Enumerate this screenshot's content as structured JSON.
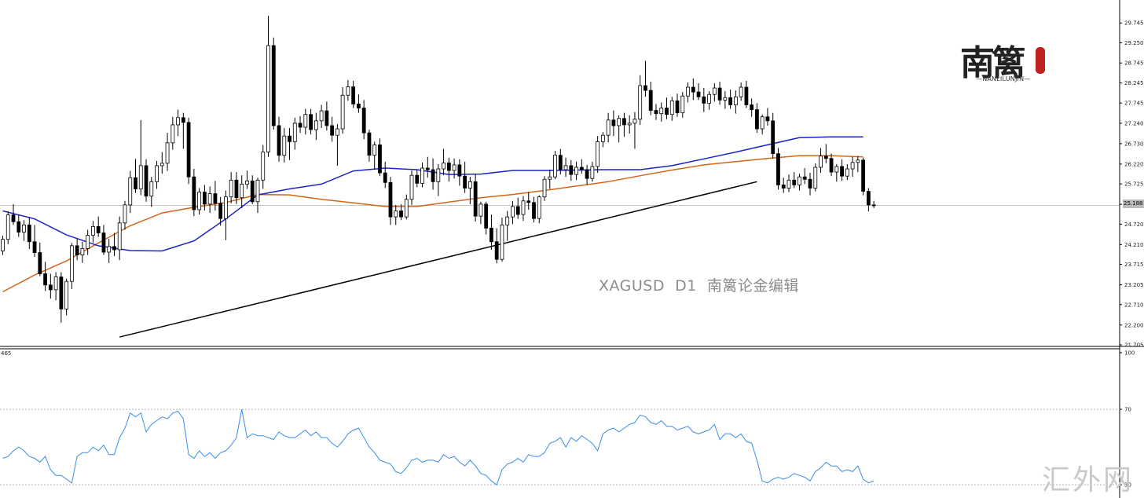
{
  "chart_data": [
    {
      "type": "candlestick",
      "title": "XAGUSD  D1  南篱论金编辑",
      "ylim": [
        21.705,
        30.24
      ],
      "y_ticks": [
        "29.745",
        "29.250",
        "28.745",
        "28.245",
        "27.745",
        "27.240",
        "26.730",
        "26.220",
        "25.725",
        "25.215",
        "24.720",
        "24.210",
        "23.715",
        "23.205",
        "22.710",
        "22.200",
        "21.705"
      ],
      "last_price": "25.188",
      "current_price_line": 25.188,
      "ohlc": [
        [
          24.05,
          24.43,
          23.95,
          24.34
        ],
        [
          24.34,
          25.04,
          24.22,
          24.95
        ],
        [
          24.95,
          25.22,
          24.7,
          24.78
        ],
        [
          24.78,
          24.95,
          24.4,
          24.52
        ],
        [
          24.52,
          24.82,
          24.3,
          24.7
        ],
        [
          24.7,
          24.9,
          24.1,
          24.28
        ],
        [
          24.28,
          24.7,
          23.9,
          24.01
        ],
        [
          24.01,
          24.26,
          23.42,
          23.48
        ],
        [
          23.48,
          23.78,
          23.05,
          23.2
        ],
        [
          23.2,
          23.48,
          22.86,
          23.08
        ],
        [
          23.08,
          23.52,
          22.82,
          23.4
        ],
        [
          23.4,
          23.52,
          22.26,
          22.6
        ],
        [
          22.6,
          23.36,
          22.44,
          23.29
        ],
        [
          23.29,
          24.25,
          23.1,
          24.18
        ],
        [
          24.18,
          24.35,
          23.82,
          23.95
        ],
        [
          23.95,
          24.28,
          23.75,
          24.11
        ],
        [
          24.11,
          24.58,
          23.95,
          24.44
        ],
        [
          24.44,
          24.8,
          24.26,
          24.66
        ],
        [
          24.66,
          24.91,
          24.4,
          24.5
        ],
        [
          24.5,
          24.7,
          23.95,
          24.02
        ],
        [
          24.02,
          24.35,
          23.75,
          24.16
        ],
        [
          24.16,
          24.5,
          23.92,
          24.08
        ],
        [
          24.08,
          24.91,
          23.82,
          24.75
        ],
        [
          24.75,
          25.3,
          24.58,
          25.2
        ],
        [
          25.2,
          26.05,
          25.0,
          25.88
        ],
        [
          25.88,
          26.35,
          25.5,
          25.6
        ],
        [
          25.6,
          27.32,
          25.44,
          26.18
        ],
        [
          26.18,
          26.34,
          25.28,
          25.42
        ],
        [
          25.42,
          25.9,
          25.15,
          25.78
        ],
        [
          25.78,
          26.3,
          25.6,
          26.18
        ],
        [
          26.18,
          26.52,
          25.98,
          26.24
        ],
        [
          26.24,
          27.0,
          26.05,
          26.75
        ],
        [
          26.75,
          27.4,
          26.58,
          27.2
        ],
        [
          27.2,
          27.58,
          26.92,
          27.38
        ],
        [
          27.38,
          27.5,
          26.6,
          27.26
        ],
        [
          27.26,
          27.38,
          25.72,
          25.9
        ],
        [
          25.9,
          26.1,
          24.92,
          25.08
        ],
        [
          25.08,
          25.62,
          24.96,
          25.52
        ],
        [
          25.52,
          25.7,
          25.06,
          25.22
        ],
        [
          25.22,
          25.66,
          25.0,
          25.48
        ],
        [
          25.48,
          25.8,
          25.06,
          25.24
        ],
        [
          25.24,
          25.4,
          24.68,
          24.86
        ],
        [
          24.86,
          25.56,
          24.32,
          25.4
        ],
        [
          25.4,
          26.02,
          25.24,
          25.82
        ],
        [
          25.82,
          26.02,
          25.22,
          25.38
        ],
        [
          25.38,
          25.94,
          25.12,
          25.72
        ],
        [
          25.72,
          26.06,
          25.6,
          25.8
        ],
        [
          25.8,
          25.94,
          25.22,
          25.28
        ],
        [
          25.28,
          25.88,
          25.0,
          25.82
        ],
        [
          25.82,
          26.7,
          25.6,
          26.52
        ],
        [
          26.52,
          29.92,
          26.4,
          29.18
        ],
        [
          29.18,
          29.38,
          27.08,
          27.18
        ],
        [
          27.18,
          27.4,
          26.28,
          26.44
        ],
        [
          26.44,
          27.12,
          26.26,
          26.92
        ],
        [
          26.92,
          27.12,
          26.32,
          26.78
        ],
        [
          26.78,
          27.38,
          26.58,
          27.24
        ],
        [
          27.24,
          27.42,
          27.0,
          27.14
        ],
        [
          27.14,
          27.6,
          26.96,
          27.46
        ],
        [
          27.46,
          27.6,
          26.96,
          27.08
        ],
        [
          27.08,
          27.5,
          26.82,
          27.3
        ],
        [
          27.3,
          27.7,
          27.12,
          27.55
        ],
        [
          27.55,
          27.78,
          27.06,
          27.18
        ],
        [
          27.18,
          27.4,
          26.78,
          26.94
        ],
        [
          26.94,
          27.22,
          26.18,
          27.1
        ],
        [
          27.1,
          28.14,
          26.98,
          27.94
        ],
        [
          27.94,
          28.32,
          27.8,
          28.15
        ],
        [
          28.15,
          28.3,
          27.62,
          27.72
        ],
        [
          27.72,
          27.96,
          27.5,
          27.62
        ],
        [
          27.62,
          27.82,
          26.84,
          27.0
        ],
        [
          27.0,
          27.08,
          26.28,
          26.44
        ],
        [
          26.44,
          26.78,
          26.08,
          26.7
        ],
        [
          26.7,
          26.86,
          25.92,
          26.0
        ],
        [
          26.0,
          26.28,
          25.62,
          25.76
        ],
        [
          25.76,
          25.9,
          24.7,
          24.9
        ],
        [
          24.9,
          25.2,
          24.7,
          25.05
        ],
        [
          25.05,
          25.22,
          24.82,
          24.9
        ],
        [
          24.9,
          25.46,
          24.84,
          25.34
        ],
        [
          25.34,
          26.06,
          25.2,
          25.94
        ],
        [
          25.94,
          26.08,
          25.64,
          25.74
        ],
        [
          25.74,
          26.26,
          25.64,
          26.12
        ],
        [
          26.12,
          26.4,
          25.88,
          26.08
        ],
        [
          26.08,
          26.36,
          25.58,
          25.78
        ],
        [
          25.78,
          26.22,
          25.42,
          26.1
        ],
        [
          26.1,
          26.6,
          25.94,
          26.25
        ],
        [
          26.25,
          26.38,
          25.78,
          26.06
        ],
        [
          26.06,
          26.36,
          25.86,
          26.2
        ],
        [
          26.2,
          26.34,
          25.68,
          25.92
        ],
        [
          25.92,
          26.28,
          25.5,
          25.62
        ],
        [
          25.62,
          25.9,
          25.22,
          25.78
        ],
        [
          25.78,
          25.96,
          24.78,
          24.92
        ],
        [
          24.92,
          25.28,
          24.72,
          25.22
        ],
        [
          25.22,
          25.28,
          24.46,
          24.62
        ],
        [
          24.62,
          24.96,
          24.08,
          24.28
        ],
        [
          24.28,
          24.62,
          23.74,
          23.84
        ],
        [
          23.84,
          24.88,
          23.78,
          24.7
        ],
        [
          24.7,
          25.05,
          24.3,
          24.9
        ],
        [
          24.9,
          25.3,
          24.72,
          25.16
        ],
        [
          25.16,
          25.38,
          24.85,
          24.96
        ],
        [
          24.96,
          25.42,
          24.8,
          25.3
        ],
        [
          25.3,
          25.52,
          25.08,
          25.26
        ],
        [
          25.26,
          25.4,
          24.76,
          24.86
        ],
        [
          24.86,
          25.44,
          24.74,
          25.4
        ],
        [
          25.4,
          25.92,
          25.3,
          25.84
        ],
        [
          25.84,
          26.08,
          25.6,
          25.9
        ],
        [
          25.9,
          26.55,
          25.84,
          26.44
        ],
        [
          26.44,
          26.6,
          25.96,
          26.08
        ],
        [
          26.08,
          26.38,
          25.9,
          26.18
        ],
        [
          26.18,
          26.32,
          25.8,
          25.96
        ],
        [
          25.96,
          26.28,
          25.82,
          26.14
        ],
        [
          26.14,
          26.34,
          25.98,
          26.08
        ],
        [
          26.08,
          26.2,
          25.7,
          25.86
        ],
        [
          25.86,
          26.28,
          25.78,
          26.16
        ],
        [
          26.16,
          26.92,
          26.0,
          26.78
        ],
        [
          26.78,
          27.02,
          26.64,
          26.94
        ],
        [
          26.94,
          27.5,
          26.76,
          27.32
        ],
        [
          27.32,
          27.56,
          26.92,
          27.18
        ],
        [
          27.18,
          27.44,
          26.76,
          27.36
        ],
        [
          27.36,
          27.5,
          26.9,
          27.2
        ],
        [
          27.2,
          27.44,
          26.98,
          27.24
        ],
        [
          27.24,
          27.52,
          26.6,
          27.34
        ],
        [
          27.34,
          28.44,
          27.2,
          28.18
        ],
        [
          28.18,
          28.8,
          27.9,
          28.06
        ],
        [
          28.06,
          28.28,
          27.44,
          27.56
        ],
        [
          27.56,
          27.72,
          27.32,
          27.48
        ],
        [
          27.48,
          27.76,
          27.28,
          27.62
        ],
        [
          27.62,
          27.88,
          27.34,
          27.46
        ],
        [
          27.46,
          27.9,
          27.3,
          27.8
        ],
        [
          27.8,
          27.98,
          27.4,
          27.5
        ],
        [
          27.5,
          28.02,
          27.38,
          27.92
        ],
        [
          27.92,
          28.26,
          27.76,
          28.14
        ],
        [
          28.14,
          28.36,
          27.82,
          28.02
        ],
        [
          28.02,
          28.24,
          27.82,
          27.9
        ],
        [
          27.9,
          28.12,
          27.52,
          27.74
        ],
        [
          27.74,
          28.04,
          27.58,
          27.96
        ],
        [
          27.96,
          28.24,
          27.78,
          28.12
        ],
        [
          28.12,
          28.28,
          27.7,
          27.82
        ],
        [
          27.82,
          28.04,
          27.6,
          27.88
        ],
        [
          27.88,
          28.08,
          27.6,
          27.7
        ],
        [
          27.7,
          28.06,
          27.48,
          27.9
        ],
        [
          27.9,
          28.26,
          27.8,
          28.14
        ],
        [
          28.14,
          28.3,
          27.62,
          27.7
        ],
        [
          27.7,
          27.86,
          27.4,
          27.58
        ],
        [
          27.58,
          27.74,
          27.0,
          27.1
        ],
        [
          27.1,
          27.46,
          26.96,
          27.4
        ],
        [
          27.4,
          27.62,
          27.18,
          27.3
        ],
        [
          27.3,
          27.5,
          26.36,
          26.48
        ],
        [
          26.48,
          26.62,
          25.58,
          25.7
        ],
        [
          25.7,
          25.88,
          25.5,
          25.62
        ],
        [
          25.62,
          25.96,
          25.52,
          25.82
        ],
        [
          25.82,
          26.02,
          25.62,
          25.7
        ],
        [
          25.7,
          25.98,
          25.56,
          25.9
        ],
        [
          25.9,
          26.12,
          25.72,
          25.84
        ],
        [
          25.84,
          26.0,
          25.44,
          25.62
        ],
        [
          25.62,
          26.24,
          25.54,
          26.14
        ],
        [
          26.14,
          26.62,
          26.0,
          26.42
        ],
        [
          26.42,
          26.72,
          26.24,
          26.36
        ],
        [
          26.36,
          26.48,
          25.92,
          26.02
        ],
        [
          26.02,
          26.22,
          25.78,
          26.16
        ],
        [
          26.16,
          26.34,
          25.8,
          25.92
        ],
        [
          25.92,
          26.22,
          25.82,
          26.1
        ],
        [
          26.1,
          26.4,
          25.9,
          26.26
        ],
        [
          26.26,
          26.42,
          26.02,
          26.32
        ],
        [
          26.32,
          26.38,
          25.44,
          25.54
        ],
        [
          25.54,
          25.62,
          25.04,
          25.2
        ],
        [
          25.2,
          25.3,
          25.12,
          25.18
        ]
      ],
      "ma_slow_color": "#1a22c8",
      "ma_slow": [
        25.05,
        24.85,
        24.45,
        24.18,
        24.06,
        24.05,
        24.3,
        24.85,
        25.45,
        25.6,
        25.72,
        26.05,
        26.12,
        26.08,
        25.96,
        25.97,
        26.06,
        26.06,
        26.07,
        26.08,
        26.08,
        26.18,
        26.35,
        26.52,
        26.7,
        26.88,
        26.9,
        26.9
      ],
      "ma_fast_color": "#d46619",
      "ma_fast": [
        23.03,
        23.45,
        23.8,
        24.25,
        24.68,
        25.0,
        25.14,
        25.26,
        25.46,
        25.45,
        25.34,
        25.25,
        25.16,
        25.16,
        25.27,
        25.38,
        25.46,
        25.56,
        25.67,
        25.78,
        25.93,
        26.07,
        26.2,
        26.28,
        26.36,
        26.43,
        26.43,
        26.4
      ],
      "trendline_color": "#000000",
      "trendline_points": [
        [
          22.0,
          21.9
        ],
        [
          142.0,
          25.78
        ]
      ],
      "oscillator": {
        "label": "465",
        "ylim": [
          23,
          100
        ],
        "levels": [
          "100",
          "70",
          "30"
        ],
        "color": "#3a8ee6",
        "values": [
          44,
          45,
          48,
          50,
          48,
          45,
          44,
          42,
          45,
          38,
          35,
          35,
          33,
          31,
          45,
          47,
          47,
          50,
          48,
          51,
          46,
          46,
          55,
          60,
          68,
          66,
          68,
          58,
          62,
          64,
          66,
          65,
          68,
          69,
          65,
          46,
          44,
          48,
          45,
          47,
          44,
          47,
          48,
          51,
          55,
          70,
          55,
          57,
          56,
          56,
          55,
          54,
          58,
          56,
          55,
          55,
          57,
          59,
          56,
          58,
          55,
          55,
          52,
          50,
          53,
          57,
          59,
          60,
          55,
          50,
          47,
          43,
          42,
          41,
          37,
          36,
          39,
          43,
          44,
          42,
          43,
          43,
          42,
          46,
          44,
          45,
          42,
          40,
          43,
          40,
          36,
          35,
          32,
          30,
          38,
          41,
          42,
          44,
          42,
          46,
          45,
          45,
          47,
          52,
          53,
          55,
          50,
          55,
          53,
          56,
          54,
          52,
          48,
          57,
          59,
          60,
          58,
          60,
          62,
          63,
          67,
          66,
          63,
          62,
          64,
          61,
          61,
          59,
          60,
          61,
          58,
          57,
          58,
          59,
          62,
          54,
          57,
          57,
          55,
          57,
          53,
          52,
          43,
          32,
          31,
          33,
          34,
          33,
          34,
          36,
          35,
          34,
          32,
          37,
          39,
          42,
          40,
          40,
          37,
          38,
          37,
          40,
          33,
          31,
          32
        ]
      }
    }
  ],
  "logo": {
    "glyphs": "南篱",
    "subtext": "—NANLILUNJIN—"
  },
  "watermark": "汇外网"
}
